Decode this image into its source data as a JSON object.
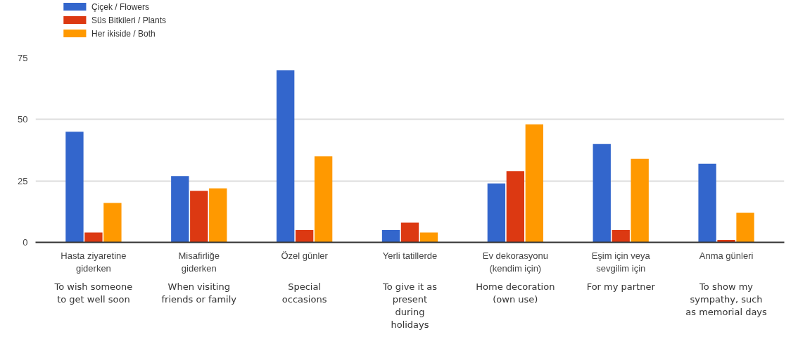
{
  "chart_data": {
    "type": "bar",
    "categories": [
      "Hasta ziyaretine\ngiderken",
      "Misafirliğe\ngiderken",
      "Özel günler",
      "Yerli tatillerde",
      "Ev dekorasyonu\n(kendim için)",
      "Eşim için veya\nsevgilim için",
      "Anma günleri"
    ],
    "series": [
      {
        "name": "Çiçek / Flowers",
        "color": "#3366cc",
        "values": [
          45,
          27,
          70,
          5,
          24,
          40,
          32
        ]
      },
      {
        "name": "Süs Bitkileri / Plants",
        "color": "#dc3912",
        "values": [
          4,
          21,
          5,
          8,
          29,
          5,
          1
        ]
      },
      {
        "name": "Her ikiside  / Both",
        "color": "#ff9900",
        "values": [
          16,
          22,
          35,
          4,
          48,
          34,
          12
        ]
      }
    ],
    "annotations": [
      "To wish someone\nto get well soon",
      "When visiting\nfriends or family",
      "Special\noccasions",
      "To give it as\npresent\nduring\nholidays",
      "Home decoration\n(own use)",
      "For my partner",
      "To show my\nsympathy, such\nas memorial days"
    ],
    "ylim": [
      0,
      75
    ],
    "yticks": [
      0,
      25,
      50,
      75
    ],
    "grid": "y",
    "legend": "top left"
  }
}
